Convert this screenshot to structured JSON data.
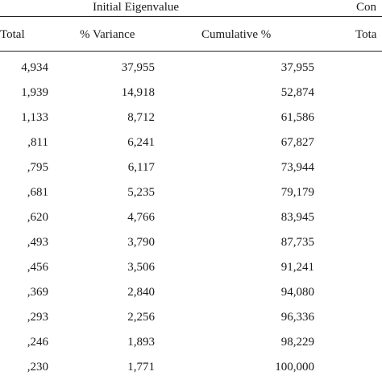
{
  "table": {
    "group_headers": {
      "initial": "Initial Eigenvalue",
      "extraction": "Con"
    },
    "columns": {
      "total": "Total",
      "variance": "% Variance",
      "cumulative": "Cumulative %",
      "total2": "Tota"
    },
    "rows": [
      {
        "total": "4,934",
        "variance": "37,955",
        "cumulative": "37,955"
      },
      {
        "total": "1,939",
        "variance": "14,918",
        "cumulative": "52,874"
      },
      {
        "total": "1,133",
        "variance": "8,712",
        "cumulative": "61,586"
      },
      {
        "total": ",811",
        "variance": "6,241",
        "cumulative": "67,827"
      },
      {
        "total": ",795",
        "variance": "6,117",
        "cumulative": "73,944"
      },
      {
        "total": ",681",
        "variance": "5,235",
        "cumulative": "79,179"
      },
      {
        "total": ",620",
        "variance": "4,766",
        "cumulative": "83,945"
      },
      {
        "total": ",493",
        "variance": "3,790",
        "cumulative": "87,735"
      },
      {
        "total": ",456",
        "variance": "3,506",
        "cumulative": "91,241"
      },
      {
        "total": ",369",
        "variance": "2,840",
        "cumulative": "94,080"
      },
      {
        "total": ",293",
        "variance": "2,256",
        "cumulative": "96,336"
      },
      {
        "total": ",246",
        "variance": "1,893",
        "cumulative": "98,229"
      },
      {
        "total": ",230",
        "variance": "1,771",
        "cumulative": "100,000"
      }
    ]
  }
}
